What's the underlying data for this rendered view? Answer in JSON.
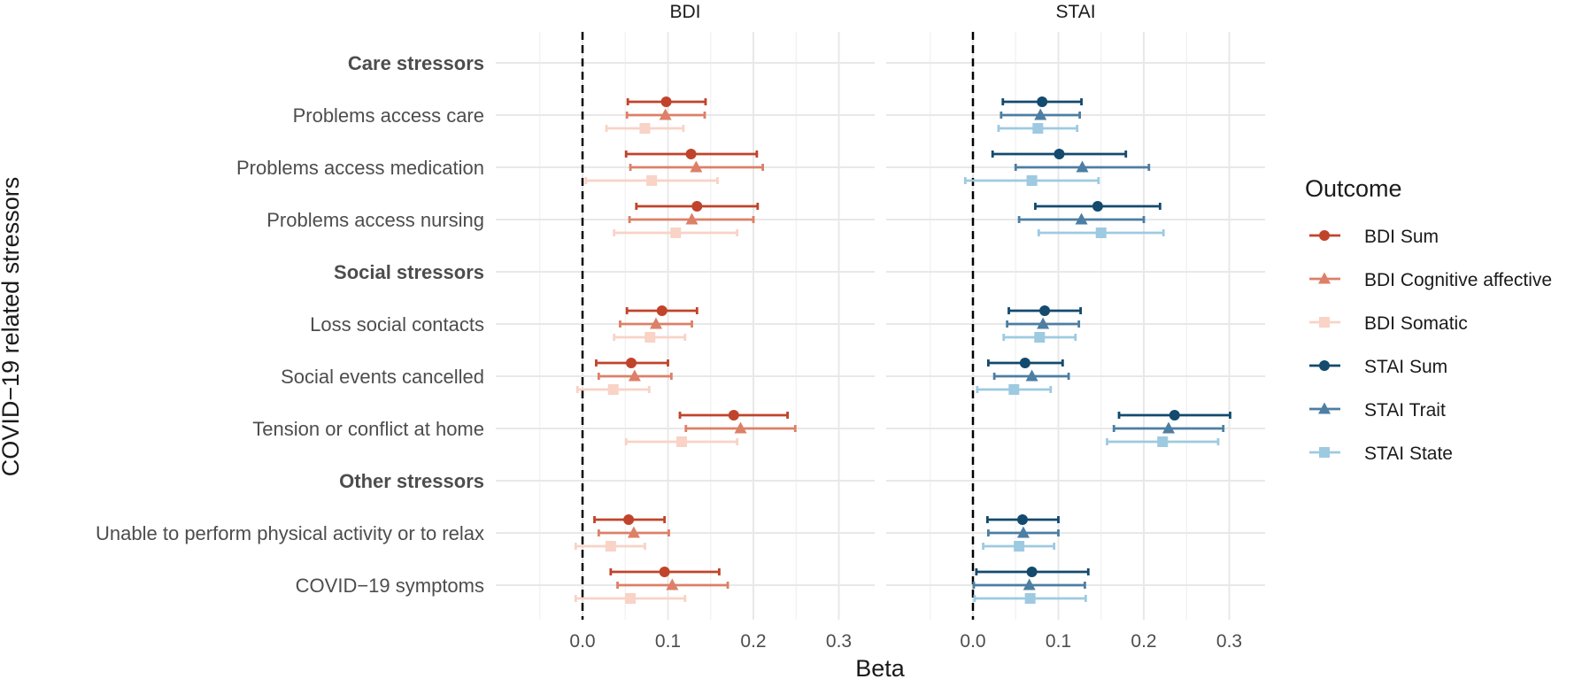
{
  "chart_data": {
    "type": "forest",
    "xlabel": "Beta",
    "ylabel": "COVID−19 related stressors",
    "xlim": [
      -0.1,
      0.34
    ],
    "xticks": [
      0.0,
      0.1,
      0.2,
      0.3
    ],
    "xtick_labels": [
      "0.0",
      "0.1",
      "0.2",
      "0.3"
    ],
    "reference_line": 0,
    "facets": [
      {
        "name": "BDI",
        "series": [
          "BDI Sum",
          "BDI Cognitive affective",
          "BDI Somatic"
        ]
      },
      {
        "name": "STAI",
        "series": [
          "STAI Sum",
          "STAI Trait",
          "STAI State"
        ]
      }
    ],
    "rows": [
      {
        "label": "Care stressors",
        "group_header": true
      },
      {
        "label": "Problems access care",
        "group_header": false
      },
      {
        "label": "Problems access medication",
        "group_header": false
      },
      {
        "label": "Problems access nursing",
        "group_header": false
      },
      {
        "label": "Social stressors",
        "group_header": true
      },
      {
        "label": "Loss social contacts",
        "group_header": false
      },
      {
        "label": "Social events cancelled",
        "group_header": false
      },
      {
        "label": "Tension or conflict at home",
        "group_header": false
      },
      {
        "label": "Other stressors",
        "group_header": true
      },
      {
        "label": "Unable to perform physical activity or to relax",
        "group_header": false
      },
      {
        "label": "COVID−19 symptoms",
        "group_header": false
      }
    ],
    "legend_title": "Outcome",
    "series": [
      {
        "name": "BDI Sum",
        "facet": 0,
        "offset": -1,
        "marker": "circle",
        "color": "#c0442b",
        "estimates": [
          {
            "row": 1,
            "beta": 0.098,
            "lo": 0.053,
            "hi": 0.144
          },
          {
            "row": 2,
            "beta": 0.127,
            "lo": 0.051,
            "hi": 0.204
          },
          {
            "row": 3,
            "beta": 0.134,
            "lo": 0.063,
            "hi": 0.205
          },
          {
            "row": 5,
            "beta": 0.093,
            "lo": 0.052,
            "hi": 0.134
          },
          {
            "row": 6,
            "beta": 0.057,
            "lo": 0.016,
            "hi": 0.1
          },
          {
            "row": 7,
            "beta": 0.177,
            "lo": 0.114,
            "hi": 0.24
          },
          {
            "row": 9,
            "beta": 0.054,
            "lo": 0.014,
            "hi": 0.096
          },
          {
            "row": 10,
            "beta": 0.096,
            "lo": 0.033,
            "hi": 0.16
          }
        ]
      },
      {
        "name": "BDI Cognitive affective",
        "facet": 0,
        "offset": 0,
        "marker": "triangle",
        "color": "#dc8068",
        "estimates": [
          {
            "row": 1,
            "beta": 0.097,
            "lo": 0.052,
            "hi": 0.143
          },
          {
            "row": 2,
            "beta": 0.133,
            "lo": 0.056,
            "hi": 0.211
          },
          {
            "row": 3,
            "beta": 0.128,
            "lo": 0.055,
            "hi": 0.2
          },
          {
            "row": 5,
            "beta": 0.086,
            "lo": 0.044,
            "hi": 0.128
          },
          {
            "row": 6,
            "beta": 0.061,
            "lo": 0.019,
            "hi": 0.104
          },
          {
            "row": 7,
            "beta": 0.185,
            "lo": 0.121,
            "hi": 0.249
          },
          {
            "row": 9,
            "beta": 0.06,
            "lo": 0.019,
            "hi": 0.101
          },
          {
            "row": 10,
            "beta": 0.105,
            "lo": 0.041,
            "hi": 0.17
          }
        ]
      },
      {
        "name": "BDI Somatic",
        "facet": 0,
        "offset": 1,
        "marker": "square",
        "color": "#f8d3c6",
        "estimates": [
          {
            "row": 1,
            "beta": 0.073,
            "lo": 0.028,
            "hi": 0.118
          },
          {
            "row": 2,
            "beta": 0.081,
            "lo": 0.004,
            "hi": 0.158
          },
          {
            "row": 3,
            "beta": 0.109,
            "lo": 0.037,
            "hi": 0.181
          },
          {
            "row": 5,
            "beta": 0.079,
            "lo": 0.037,
            "hi": 0.12
          },
          {
            "row": 6,
            "beta": 0.036,
            "lo": -0.006,
            "hi": 0.078
          },
          {
            "row": 7,
            "beta": 0.116,
            "lo": 0.051,
            "hi": 0.181
          },
          {
            "row": 9,
            "beta": 0.033,
            "lo": -0.008,
            "hi": 0.073
          },
          {
            "row": 10,
            "beta": 0.056,
            "lo": -0.008,
            "hi": 0.12
          }
        ]
      },
      {
        "name": "STAI Sum",
        "facet": 1,
        "offset": -1,
        "marker": "circle",
        "color": "#134a6e",
        "estimates": [
          {
            "row": 1,
            "beta": 0.081,
            "lo": 0.035,
            "hi": 0.127
          },
          {
            "row": 2,
            "beta": 0.101,
            "lo": 0.023,
            "hi": 0.179
          },
          {
            "row": 3,
            "beta": 0.146,
            "lo": 0.073,
            "hi": 0.219
          },
          {
            "row": 5,
            "beta": 0.084,
            "lo": 0.042,
            "hi": 0.126
          },
          {
            "row": 6,
            "beta": 0.061,
            "lo": 0.018,
            "hi": 0.105
          },
          {
            "row": 7,
            "beta": 0.236,
            "lo": 0.171,
            "hi": 0.301
          },
          {
            "row": 9,
            "beta": 0.058,
            "lo": 0.017,
            "hi": 0.1
          },
          {
            "row": 10,
            "beta": 0.069,
            "lo": 0.004,
            "hi": 0.135
          }
        ]
      },
      {
        "name": "STAI Trait",
        "facet": 1,
        "offset": 0,
        "marker": "triangle",
        "color": "#4d7ea3",
        "estimates": [
          {
            "row": 1,
            "beta": 0.079,
            "lo": 0.033,
            "hi": 0.125
          },
          {
            "row": 2,
            "beta": 0.128,
            "lo": 0.05,
            "hi": 0.206
          },
          {
            "row": 3,
            "beta": 0.127,
            "lo": 0.054,
            "hi": 0.2
          },
          {
            "row": 5,
            "beta": 0.082,
            "lo": 0.04,
            "hi": 0.124
          },
          {
            "row": 6,
            "beta": 0.069,
            "lo": 0.025,
            "hi": 0.112
          },
          {
            "row": 7,
            "beta": 0.229,
            "lo": 0.165,
            "hi": 0.293
          },
          {
            "row": 9,
            "beta": 0.059,
            "lo": 0.018,
            "hi": 0.1
          },
          {
            "row": 10,
            "beta": 0.066,
            "lo": 0.001,
            "hi": 0.131
          }
        ]
      },
      {
        "name": "STAI State",
        "facet": 1,
        "offset": 1,
        "marker": "square",
        "color": "#9ecae1",
        "estimates": [
          {
            "row": 1,
            "beta": 0.076,
            "lo": 0.03,
            "hi": 0.122
          },
          {
            "row": 2,
            "beta": 0.069,
            "lo": -0.009,
            "hi": 0.147
          },
          {
            "row": 3,
            "beta": 0.15,
            "lo": 0.077,
            "hi": 0.223
          },
          {
            "row": 5,
            "beta": 0.078,
            "lo": 0.036,
            "hi": 0.12
          },
          {
            "row": 6,
            "beta": 0.048,
            "lo": 0.005,
            "hi": 0.091
          },
          {
            "row": 7,
            "beta": 0.222,
            "lo": 0.157,
            "hi": 0.287
          },
          {
            "row": 9,
            "beta": 0.054,
            "lo": 0.012,
            "hi": 0.095
          },
          {
            "row": 10,
            "beta": 0.067,
            "lo": 0.002,
            "hi": 0.132
          }
        ]
      }
    ]
  }
}
